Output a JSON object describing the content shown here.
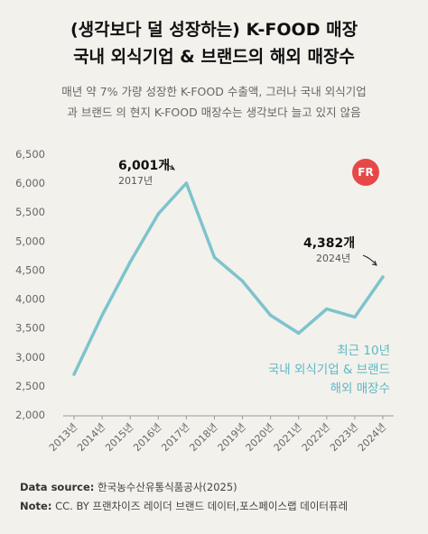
{
  "title": {
    "line1": "(생각보다 덜 성장하는) K-FOOD 매장",
    "line2": "국내 외식기업 & 브랜드의 해외 매장수"
  },
  "subtitle": {
    "line1": "매년 약 7% 가량 성장한 K-FOOD 수출액, 그러나 국내 외식기업",
    "line2": "과 브랜드 의 현지 K-FOOD 매장수는 생각보다 늘고 있지 않음"
  },
  "badge": "FR",
  "footer": {
    "source_label": "Data source:",
    "source_text": " 한국농수산유통식품공사(2025)",
    "note_label": "Note:",
    "note_text": " CC. BY 프랜차이즈 레이더 브랜드 데이터,포스페이스랩 데이터퓨레"
  },
  "colors": {
    "line": "#7ec3cc",
    "legend": "#5fb7c4",
    "badge": "#e8474a"
  },
  "chart_data": {
    "type": "line",
    "categories": [
      "2013년",
      "2014년",
      "2015년",
      "2016년",
      "2017년",
      "2018년",
      "2019년",
      "2020년",
      "2021년",
      "2022년",
      "2023년",
      "2024년"
    ],
    "series": [
      {
        "name": "최근 10년 국내 외식기업 & 브랜드 해외 매장수",
        "values": [
          2700,
          3720,
          4640,
          5470,
          6001,
          4720,
          4310,
          3720,
          3410,
          3830,
          3690,
          4382
        ]
      }
    ],
    "ylim": [
      2000,
      6500
    ],
    "yticks": [
      "2,000",
      "2,500",
      "3,000",
      "3,500",
      "4,000",
      "4,500",
      "5,000",
      "5,500",
      "6,000",
      "6,500"
    ],
    "annotations": [
      {
        "value": "6,001개",
        "year": "2017년",
        "index": 4
      },
      {
        "value": "4,382개",
        "year": "2024년",
        "index": 11
      }
    ],
    "legend": {
      "line1": "최근 10년",
      "line2": "국내 외식기업 & 브랜드",
      "line3": "해외 매장수"
    },
    "grid": false
  }
}
